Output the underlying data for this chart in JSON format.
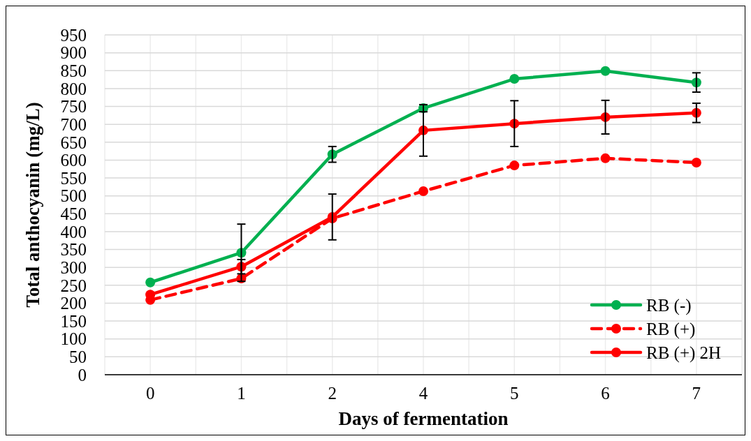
{
  "chart_data": {
    "type": "line",
    "xlabel": "Days of fermentation",
    "ylabel": "Total anthocyanin (mg/L)",
    "categories": [
      "0",
      "1",
      "2",
      "4",
      "5",
      "6",
      "7"
    ],
    "ylim": [
      0,
      950
    ],
    "yticks": [
      0,
      50,
      100,
      150,
      200,
      250,
      300,
      350,
      400,
      450,
      500,
      550,
      600,
      650,
      700,
      750,
      800,
      850,
      900,
      950
    ],
    "grid": true,
    "legend": "bottom right",
    "marker": "circle",
    "series": [
      {
        "name": "RB (-)",
        "color": "#00b050",
        "values": [
          258,
          341,
          616,
          745,
          827,
          849,
          817
        ],
        "errors": [
          null,
          80,
          22,
          10,
          null,
          null,
          27
        ],
        "line_style": "solid"
      },
      {
        "name": "RB (+)",
        "color": "#ff0000",
        "values": [
          209,
          269,
          437,
          513,
          585,
          605,
          593
        ],
        "line_style": "dashed"
      },
      {
        "name": "RB (+) 2H",
        "color": "#ff0000",
        "values": [
          224,
          302,
          441,
          683,
          702,
          720,
          732
        ],
        "errors": [
          null,
          20,
          64,
          72,
          64,
          47,
          27
        ],
        "line_style": "solid"
      }
    ]
  }
}
